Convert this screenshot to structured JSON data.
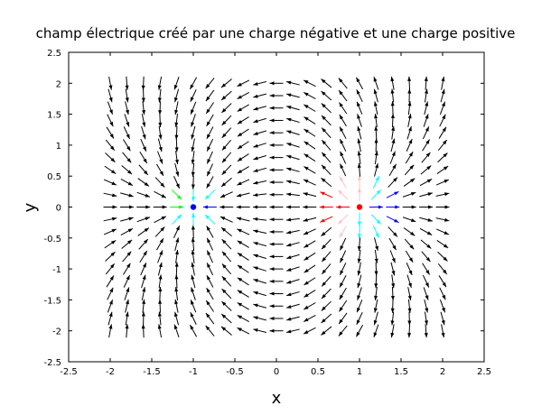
{
  "chart_data": {
    "type": "quiver",
    "title": "champ électrique créé par une charge négative et une charge positive",
    "xlabel": "x",
    "ylabel": "y",
    "xlim": [
      -2.5,
      2.5
    ],
    "ylim": [
      -2.5,
      2.5
    ],
    "xticks": [
      "-2.5",
      "-2",
      "-1.5",
      "-1",
      "-0.5",
      "0",
      "0.5",
      "1",
      "1.5",
      "2",
      "2.5"
    ],
    "yticks": [
      "-2.5",
      "-2",
      "-1.5",
      "-1",
      "-0.5",
      "0",
      "0.5",
      "1",
      "1.5",
      "2",
      "2.5"
    ],
    "grid": false,
    "field_grid": {
      "x_start": -2,
      "x_end": 2,
      "y_start": -2,
      "y_end": 2,
      "step": 0.2
    },
    "charges": [
      {
        "x": -1,
        "y": 0,
        "sign": "negative",
        "color": "#0000ff"
      },
      {
        "x": 1,
        "y": 0,
        "sign": "positive",
        "color": "#ff0000"
      }
    ],
    "arrow_colors": {
      "default": "#000000",
      "near_negative": [
        "#0000ff",
        "#00ffff",
        "#00ff00",
        "#ff0000"
      ],
      "near_positive": [
        "#0000ff",
        "#00ffff",
        "#ffc0cb",
        "#ff0000",
        "#00ff00",
        "#87cefa"
      ]
    }
  }
}
